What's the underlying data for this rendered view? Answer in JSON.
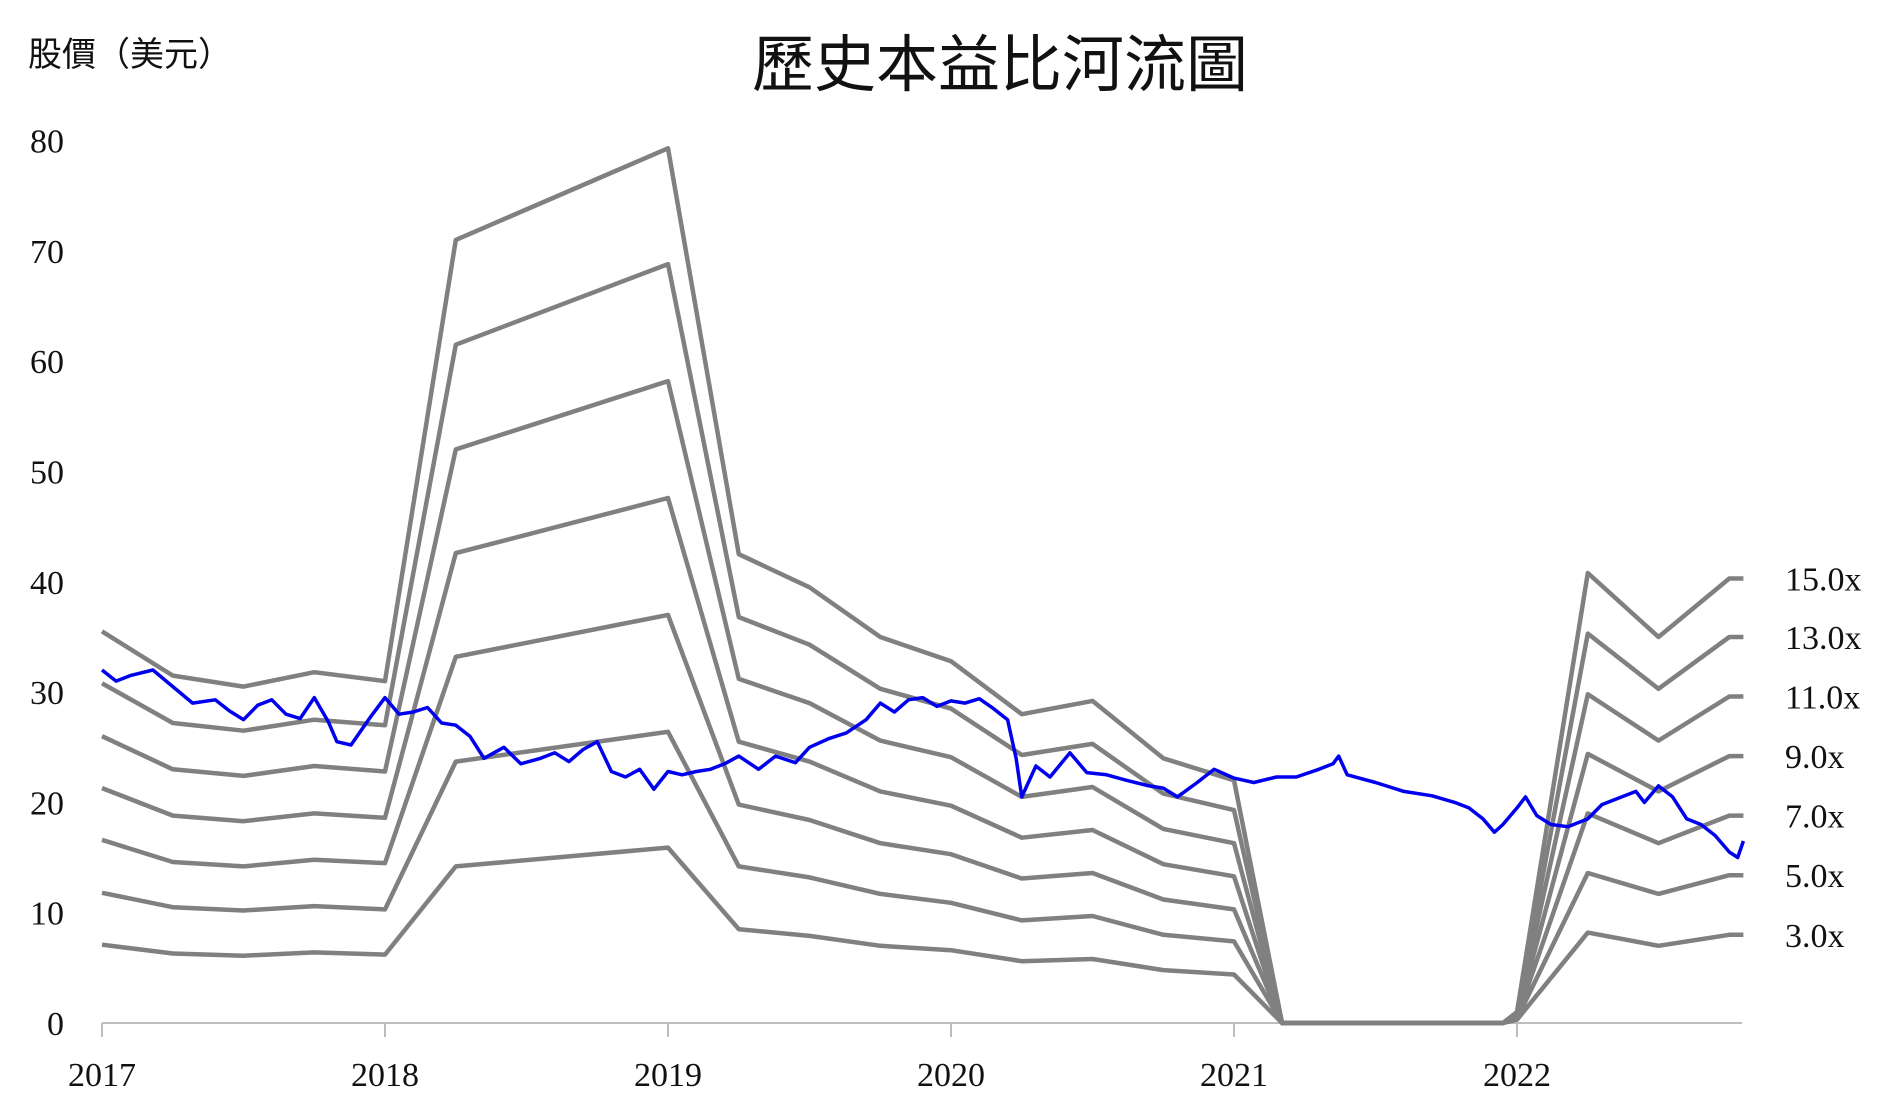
{
  "chart_data": {
    "type": "line",
    "title": "歷史本益比河流圖",
    "ylabel": "股價（美元）",
    "xlabel": "",
    "ylim": [
      0,
      80
    ],
    "yticks": [
      "0",
      "10",
      "20",
      "30",
      "40",
      "50",
      "60",
      "70",
      "80"
    ],
    "xticks": [
      "2017",
      "2018",
      "2019",
      "2020",
      "2021",
      "2022"
    ],
    "grid": false,
    "colors": {
      "bands": "#808080",
      "price": "#0000ee"
    },
    "series": [
      {
        "name": "15.0x",
        "points": [
          [
            2017.0,
            35.5
          ],
          [
            2017.25,
            31.5
          ],
          [
            2017.5,
            30.5
          ],
          [
            2017.75,
            31.8
          ],
          [
            2018.0,
            31.0
          ],
          [
            2018.25,
            71.0
          ],
          [
            2019.0,
            79.3
          ],
          [
            2019.25,
            42.5
          ],
          [
            2019.5,
            39.5
          ],
          [
            2019.75,
            35.0
          ],
          [
            2020.0,
            32.8
          ],
          [
            2020.25,
            28.0
          ],
          [
            2020.5,
            29.2
          ],
          [
            2020.75,
            24.0
          ],
          [
            2021.0,
            22.0
          ],
          [
            2021.17,
            0
          ],
          [
            2021.95,
            0
          ],
          [
            2022.0,
            1.0
          ],
          [
            2022.25,
            40.8
          ],
          [
            2022.5,
            35.0
          ],
          [
            2022.75,
            40.3
          ],
          [
            2022.8,
            40.3
          ]
        ]
      },
      {
        "name": "13.0x",
        "points": [
          [
            2017.0,
            30.8
          ],
          [
            2017.25,
            27.2
          ],
          [
            2017.5,
            26.5
          ],
          [
            2017.75,
            27.5
          ],
          [
            2018.0,
            27.0
          ],
          [
            2018.25,
            61.5
          ],
          [
            2019.0,
            68.8
          ],
          [
            2019.25,
            36.8
          ],
          [
            2019.5,
            34.3
          ],
          [
            2019.75,
            30.3
          ],
          [
            2020.0,
            28.5
          ],
          [
            2020.25,
            24.3
          ],
          [
            2020.5,
            25.3
          ],
          [
            2020.75,
            20.8
          ],
          [
            2021.0,
            19.3
          ],
          [
            2021.17,
            0
          ],
          [
            2021.95,
            0
          ],
          [
            2022.0,
            0.8
          ],
          [
            2022.25,
            35.3
          ],
          [
            2022.5,
            30.3
          ],
          [
            2022.75,
            35.0
          ],
          [
            2022.8,
            35.0
          ]
        ]
      },
      {
        "name": "11.0x",
        "points": [
          [
            2017.0,
            26.0
          ],
          [
            2017.25,
            23.0
          ],
          [
            2017.5,
            22.4
          ],
          [
            2017.75,
            23.3
          ],
          [
            2018.0,
            22.8
          ],
          [
            2018.25,
            52.0
          ],
          [
            2019.0,
            58.2
          ],
          [
            2019.25,
            31.2
          ],
          [
            2019.5,
            29.0
          ],
          [
            2019.75,
            25.6
          ],
          [
            2020.0,
            24.1
          ],
          [
            2020.25,
            20.5
          ],
          [
            2020.5,
            21.4
          ],
          [
            2020.75,
            17.6
          ],
          [
            2021.0,
            16.3
          ],
          [
            2021.17,
            0
          ],
          [
            2021.95,
            0
          ],
          [
            2022.0,
            0.7
          ],
          [
            2022.25,
            29.8
          ],
          [
            2022.5,
            25.6
          ],
          [
            2022.75,
            29.6
          ],
          [
            2022.8,
            29.6
          ]
        ]
      },
      {
        "name": "9.0x",
        "points": [
          [
            2017.0,
            21.3
          ],
          [
            2017.25,
            18.8
          ],
          [
            2017.5,
            18.3
          ],
          [
            2017.75,
            19.0
          ],
          [
            2018.0,
            18.6
          ],
          [
            2018.25,
            42.6
          ],
          [
            2019.0,
            47.6
          ],
          [
            2019.25,
            25.5
          ],
          [
            2019.5,
            23.7
          ],
          [
            2019.75,
            21.0
          ],
          [
            2020.0,
            19.7
          ],
          [
            2020.25,
            16.8
          ],
          [
            2020.5,
            17.5
          ],
          [
            2020.75,
            14.4
          ],
          [
            2021.0,
            13.3
          ],
          [
            2021.17,
            0
          ],
          [
            2021.95,
            0
          ],
          [
            2022.0,
            0.6
          ],
          [
            2022.25,
            24.4
          ],
          [
            2022.5,
            21.0
          ],
          [
            2022.75,
            24.2
          ],
          [
            2022.8,
            24.2
          ]
        ]
      },
      {
        "name": "7.0x",
        "points": [
          [
            2017.0,
            16.6
          ],
          [
            2017.25,
            14.6
          ],
          [
            2017.5,
            14.2
          ],
          [
            2017.75,
            14.8
          ],
          [
            2018.0,
            14.5
          ],
          [
            2018.25,
            33.2
          ],
          [
            2019.0,
            37.0
          ],
          [
            2019.25,
            19.8
          ],
          [
            2019.5,
            18.4
          ],
          [
            2019.75,
            16.3
          ],
          [
            2020.0,
            15.3
          ],
          [
            2020.25,
            13.1
          ],
          [
            2020.5,
            13.6
          ],
          [
            2020.75,
            11.2
          ],
          [
            2021.0,
            10.3
          ],
          [
            2021.17,
            0
          ],
          [
            2021.95,
            0
          ],
          [
            2022.0,
            0.5
          ],
          [
            2022.25,
            19.0
          ],
          [
            2022.5,
            16.3
          ],
          [
            2022.75,
            18.8
          ],
          [
            2022.8,
            18.8
          ]
        ]
      },
      {
        "name": "5.0x",
        "points": [
          [
            2017.0,
            11.8
          ],
          [
            2017.25,
            10.5
          ],
          [
            2017.5,
            10.2
          ],
          [
            2017.75,
            10.6
          ],
          [
            2018.0,
            10.3
          ],
          [
            2018.25,
            23.7
          ],
          [
            2019.0,
            26.4
          ],
          [
            2019.25,
            14.2
          ],
          [
            2019.5,
            13.2
          ],
          [
            2019.75,
            11.7
          ],
          [
            2020.0,
            10.9
          ],
          [
            2020.25,
            9.3
          ],
          [
            2020.5,
            9.7
          ],
          [
            2020.75,
            8.0
          ],
          [
            2021.0,
            7.4
          ],
          [
            2021.17,
            0
          ],
          [
            2021.95,
            0
          ],
          [
            2022.0,
            0.4
          ],
          [
            2022.25,
            13.6
          ],
          [
            2022.5,
            11.7
          ],
          [
            2022.75,
            13.4
          ],
          [
            2022.8,
            13.4
          ]
        ]
      },
      {
        "name": "3.0x",
        "points": [
          [
            2017.0,
            7.1
          ],
          [
            2017.25,
            6.3
          ],
          [
            2017.5,
            6.1
          ],
          [
            2017.75,
            6.4
          ],
          [
            2018.0,
            6.2
          ],
          [
            2018.25,
            14.2
          ],
          [
            2019.0,
            15.9
          ],
          [
            2019.25,
            8.5
          ],
          [
            2019.5,
            7.9
          ],
          [
            2019.75,
            7.0
          ],
          [
            2020.0,
            6.6
          ],
          [
            2020.25,
            5.6
          ],
          [
            2020.5,
            5.8
          ],
          [
            2020.75,
            4.8
          ],
          [
            2021.0,
            4.4
          ],
          [
            2021.17,
            0
          ],
          [
            2021.95,
            0
          ],
          [
            2022.0,
            0.3
          ],
          [
            2022.25,
            8.2
          ],
          [
            2022.5,
            7.0
          ],
          [
            2022.75,
            8.0
          ],
          [
            2022.8,
            8.0
          ]
        ]
      },
      {
        "name": "",
        "points": [
          [
            2017.0,
            32.0
          ],
          [
            2017.05,
            31.0
          ],
          [
            2017.1,
            31.5
          ],
          [
            2017.18,
            32.0
          ],
          [
            2017.25,
            30.5
          ],
          [
            2017.32,
            29.0
          ],
          [
            2017.4,
            29.3
          ],
          [
            2017.45,
            28.3
          ],
          [
            2017.5,
            27.5
          ],
          [
            2017.55,
            28.8
          ],
          [
            2017.6,
            29.3
          ],
          [
            2017.65,
            28.0
          ],
          [
            2017.7,
            27.6
          ],
          [
            2017.75,
            29.5
          ],
          [
            2017.8,
            27.3
          ],
          [
            2017.83,
            25.5
          ],
          [
            2017.88,
            25.2
          ],
          [
            2017.95,
            27.8
          ],
          [
            2018.0,
            29.5
          ],
          [
            2018.05,
            28.0
          ],
          [
            2018.1,
            28.2
          ],
          [
            2018.15,
            28.6
          ],
          [
            2018.2,
            27.2
          ],
          [
            2018.25,
            27.0
          ],
          [
            2018.3,
            26.0
          ],
          [
            2018.35,
            24.0
          ],
          [
            2018.42,
            25.0
          ],
          [
            2018.48,
            23.5
          ],
          [
            2018.55,
            24.0
          ],
          [
            2018.6,
            24.5
          ],
          [
            2018.65,
            23.7
          ],
          [
            2018.7,
            24.8
          ],
          [
            2018.75,
            25.5
          ],
          [
            2018.8,
            22.8
          ],
          [
            2018.85,
            22.3
          ],
          [
            2018.9,
            23.0
          ],
          [
            2018.95,
            21.2
          ],
          [
            2019.0,
            22.8
          ],
          [
            2019.05,
            22.5
          ],
          [
            2019.1,
            22.8
          ],
          [
            2019.15,
            23.0
          ],
          [
            2019.2,
            23.5
          ],
          [
            2019.25,
            24.2
          ],
          [
            2019.32,
            23.0
          ],
          [
            2019.38,
            24.2
          ],
          [
            2019.45,
            23.6
          ],
          [
            2019.5,
            25.0
          ],
          [
            2019.57,
            25.8
          ],
          [
            2019.63,
            26.3
          ],
          [
            2019.7,
            27.5
          ],
          [
            2019.75,
            29.0
          ],
          [
            2019.8,
            28.2
          ],
          [
            2019.85,
            29.3
          ],
          [
            2019.9,
            29.5
          ],
          [
            2019.95,
            28.7
          ],
          [
            2020.0,
            29.2
          ],
          [
            2020.05,
            29.0
          ],
          [
            2020.1,
            29.4
          ],
          [
            2020.15,
            28.5
          ],
          [
            2020.2,
            27.5
          ],
          [
            2020.23,
            24.0
          ],
          [
            2020.25,
            20.5
          ],
          [
            2020.3,
            23.3
          ],
          [
            2020.35,
            22.3
          ],
          [
            2020.42,
            24.5
          ],
          [
            2020.48,
            22.7
          ],
          [
            2020.55,
            22.5
          ],
          [
            2020.62,
            22.0
          ],
          [
            2020.7,
            21.5
          ],
          [
            2020.75,
            21.3
          ],
          [
            2020.8,
            20.5
          ],
          [
            2020.87,
            21.8
          ],
          [
            2020.93,
            23.0
          ],
          [
            2021.0,
            22.2
          ],
          [
            2021.07,
            21.8
          ],
          [
            2021.15,
            22.3
          ],
          [
            2021.22,
            22.3
          ],
          [
            2021.3,
            23.0
          ],
          [
            2021.35,
            23.5
          ],
          [
            2021.37,
            24.2
          ],
          [
            2021.4,
            22.5
          ],
          [
            2021.5,
            21.8
          ],
          [
            2021.6,
            21.0
          ],
          [
            2021.7,
            20.6
          ],
          [
            2021.78,
            20.0
          ],
          [
            2021.83,
            19.5
          ],
          [
            2021.88,
            18.5
          ],
          [
            2021.92,
            17.3
          ],
          [
            2021.95,
            18.0
          ],
          [
            2022.0,
            19.5
          ],
          [
            2022.03,
            20.5
          ],
          [
            2022.07,
            18.8
          ],
          [
            2022.12,
            18.0
          ],
          [
            2022.18,
            17.8
          ],
          [
            2022.25,
            18.5
          ],
          [
            2022.3,
            19.8
          ],
          [
            2022.35,
            20.3
          ],
          [
            2022.42,
            21.0
          ],
          [
            2022.45,
            20.0
          ],
          [
            2022.5,
            21.5
          ],
          [
            2022.55,
            20.5
          ],
          [
            2022.6,
            18.5
          ],
          [
            2022.65,
            18.0
          ],
          [
            2022.7,
            17.0
          ],
          [
            2022.75,
            15.5
          ],
          [
            2022.78,
            15.0
          ],
          [
            2022.8,
            16.5
          ]
        ]
      }
    ]
  }
}
